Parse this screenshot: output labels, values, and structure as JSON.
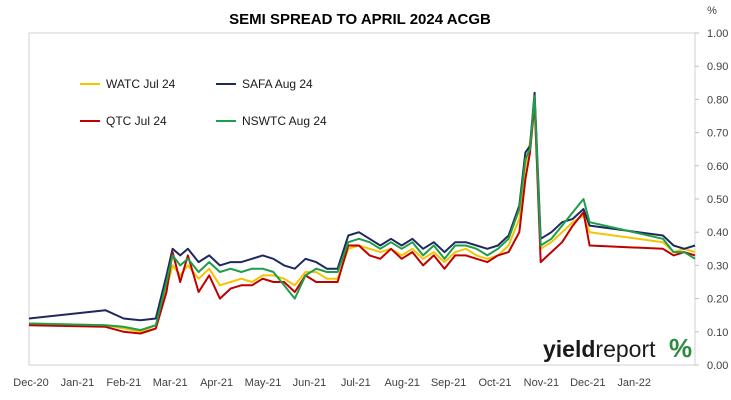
{
  "chart_data": {
    "type": "line",
    "title": "SEMI SPREAD TO APRIL 2024 ACGB",
    "y_unit": "%",
    "xlabel": "",
    "ylabel": "",
    "ylim": [
      0.0,
      1.0
    ],
    "ytick_step": 0.1,
    "y_ticks": [
      "0.00",
      "0.10",
      "0.20",
      "0.30",
      "0.40",
      "0.50",
      "0.60",
      "0.70",
      "0.80",
      "0.90",
      "1.00"
    ],
    "x_tick_labels": [
      "Dec-20",
      "Jan-21",
      "Feb-21",
      "Mar-21",
      "Apr-21",
      "May-21",
      "Jun-21",
      "Jul-21",
      "Aug-21",
      "Sep-21",
      "Oct-21",
      "Nov-21",
      "Dec-21",
      "Jan-22"
    ],
    "x_range": [
      "2020-12-01",
      "2022-02-10"
    ],
    "grid": false,
    "legend": "top-left",
    "series": [
      {
        "name": "WATC Jul 24",
        "color": "#f5c400",
        "points": [
          [
            "2020-12-01",
            0.125
          ],
          [
            "2021-01-20",
            0.12
          ],
          [
            "2021-02-01",
            0.11
          ],
          [
            "2021-02-12",
            0.1
          ],
          [
            "2021-02-22",
            0.12
          ],
          [
            "2021-03-01",
            0.23
          ],
          [
            "2021-03-05",
            0.3
          ],
          [
            "2021-03-10",
            0.27
          ],
          [
            "2021-03-15",
            0.3
          ],
          [
            "2021-03-22",
            0.26
          ],
          [
            "2021-03-29",
            0.29
          ],
          [
            "2021-04-05",
            0.24
          ],
          [
            "2021-04-12",
            0.25
          ],
          [
            "2021-04-19",
            0.26
          ],
          [
            "2021-04-26",
            0.25
          ],
          [
            "2021-05-03",
            0.27
          ],
          [
            "2021-05-10",
            0.27
          ],
          [
            "2021-05-17",
            0.26
          ],
          [
            "2021-05-24",
            0.24
          ],
          [
            "2021-05-31",
            0.28
          ],
          [
            "2021-06-07",
            0.28
          ],
          [
            "2021-06-14",
            0.26
          ],
          [
            "2021-06-21",
            0.26
          ],
          [
            "2021-06-28",
            0.35
          ],
          [
            "2021-07-05",
            0.36
          ],
          [
            "2021-07-12",
            0.35
          ],
          [
            "2021-07-19",
            0.34
          ],
          [
            "2021-07-26",
            0.35
          ],
          [
            "2021-08-02",
            0.33
          ],
          [
            "2021-08-09",
            0.35
          ],
          [
            "2021-08-16",
            0.32
          ],
          [
            "2021-08-23",
            0.34
          ],
          [
            "2021-08-30",
            0.31
          ],
          [
            "2021-09-06",
            0.34
          ],
          [
            "2021-09-13",
            0.35
          ],
          [
            "2021-09-20",
            0.33
          ],
          [
            "2021-09-27",
            0.32
          ],
          [
            "2021-10-04",
            0.33
          ],
          [
            "2021-10-11",
            0.36
          ],
          [
            "2021-10-18",
            0.44
          ],
          [
            "2021-10-22",
            0.6
          ],
          [
            "2021-10-25",
            0.67
          ],
          [
            "2021-10-28",
            0.78
          ],
          [
            "2021-11-01",
            0.35
          ],
          [
            "2021-11-08",
            0.37
          ],
          [
            "2021-11-15",
            0.4
          ],
          [
            "2021-11-22",
            0.43
          ],
          [
            "2021-11-29",
            0.45
          ],
          [
            "2021-12-03",
            0.4
          ],
          [
            "2022-01-20",
            0.37
          ],
          [
            "2022-01-27",
            0.34
          ],
          [
            "2022-02-03",
            0.35
          ],
          [
            "2022-02-10",
            0.34
          ]
        ]
      },
      {
        "name": "SAFA Aug 24",
        "color": "#1f2a5c",
        "points": [
          [
            "2020-12-01",
            0.14
          ],
          [
            "2021-01-20",
            0.165
          ],
          [
            "2021-02-01",
            0.14
          ],
          [
            "2021-02-12",
            0.135
          ],
          [
            "2021-02-22",
            0.14
          ],
          [
            "2021-03-01",
            0.27
          ],
          [
            "2021-03-05",
            0.35
          ],
          [
            "2021-03-10",
            0.33
          ],
          [
            "2021-03-15",
            0.35
          ],
          [
            "2021-03-22",
            0.31
          ],
          [
            "2021-03-29",
            0.33
          ],
          [
            "2021-04-05",
            0.3
          ],
          [
            "2021-04-12",
            0.31
          ],
          [
            "2021-04-19",
            0.31
          ],
          [
            "2021-04-26",
            0.32
          ],
          [
            "2021-05-03",
            0.33
          ],
          [
            "2021-05-10",
            0.32
          ],
          [
            "2021-05-17",
            0.3
          ],
          [
            "2021-05-24",
            0.29
          ],
          [
            "2021-05-31",
            0.32
          ],
          [
            "2021-06-07",
            0.31
          ],
          [
            "2021-06-14",
            0.29
          ],
          [
            "2021-06-21",
            0.29
          ],
          [
            "2021-06-28",
            0.39
          ],
          [
            "2021-07-05",
            0.4
          ],
          [
            "2021-07-12",
            0.38
          ],
          [
            "2021-07-19",
            0.36
          ],
          [
            "2021-07-26",
            0.38
          ],
          [
            "2021-08-02",
            0.36
          ],
          [
            "2021-08-09",
            0.38
          ],
          [
            "2021-08-16",
            0.35
          ],
          [
            "2021-08-23",
            0.37
          ],
          [
            "2021-08-30",
            0.34
          ],
          [
            "2021-09-06",
            0.37
          ],
          [
            "2021-09-13",
            0.37
          ],
          [
            "2021-09-20",
            0.36
          ],
          [
            "2021-09-27",
            0.35
          ],
          [
            "2021-10-04",
            0.36
          ],
          [
            "2021-10-11",
            0.39
          ],
          [
            "2021-10-18",
            0.48
          ],
          [
            "2021-10-22",
            0.64
          ],
          [
            "2021-10-25",
            0.66
          ],
          [
            "2021-10-28",
            0.82
          ],
          [
            "2021-11-01",
            0.38
          ],
          [
            "2021-11-08",
            0.4
          ],
          [
            "2021-11-15",
            0.43
          ],
          [
            "2021-11-22",
            0.44
          ],
          [
            "2021-11-29",
            0.47
          ],
          [
            "2021-12-03",
            0.42
          ],
          [
            "2022-01-20",
            0.39
          ],
          [
            "2022-01-27",
            0.36
          ],
          [
            "2022-02-03",
            0.35
          ],
          [
            "2022-02-10",
            0.36
          ]
        ]
      },
      {
        "name": "QTC Jul 24",
        "color": "#c00000",
        "points": [
          [
            "2020-12-01",
            0.12
          ],
          [
            "2021-01-20",
            0.115
          ],
          [
            "2021-02-01",
            0.1
          ],
          [
            "2021-02-12",
            0.095
          ],
          [
            "2021-02-22",
            0.11
          ],
          [
            "2021-03-01",
            0.22
          ],
          [
            "2021-03-05",
            0.34
          ],
          [
            "2021-03-10",
            0.25
          ],
          [
            "2021-03-15",
            0.33
          ],
          [
            "2021-03-22",
            0.22
          ],
          [
            "2021-03-29",
            0.27
          ],
          [
            "2021-04-05",
            0.2
          ],
          [
            "2021-04-12",
            0.23
          ],
          [
            "2021-04-19",
            0.24
          ],
          [
            "2021-04-26",
            0.24
          ],
          [
            "2021-05-03",
            0.26
          ],
          [
            "2021-05-10",
            0.25
          ],
          [
            "2021-05-17",
            0.25
          ],
          [
            "2021-05-24",
            0.22
          ],
          [
            "2021-05-31",
            0.27
          ],
          [
            "2021-06-07",
            0.25
          ],
          [
            "2021-06-14",
            0.25
          ],
          [
            "2021-06-21",
            0.25
          ],
          [
            "2021-06-28",
            0.36
          ],
          [
            "2021-07-05",
            0.36
          ],
          [
            "2021-07-12",
            0.33
          ],
          [
            "2021-07-19",
            0.32
          ],
          [
            "2021-07-26",
            0.35
          ],
          [
            "2021-08-02",
            0.32
          ],
          [
            "2021-08-09",
            0.34
          ],
          [
            "2021-08-16",
            0.3
          ],
          [
            "2021-08-23",
            0.33
          ],
          [
            "2021-08-30",
            0.29
          ],
          [
            "2021-09-06",
            0.33
          ],
          [
            "2021-09-13",
            0.33
          ],
          [
            "2021-09-20",
            0.32
          ],
          [
            "2021-09-27",
            0.31
          ],
          [
            "2021-10-04",
            0.33
          ],
          [
            "2021-10-11",
            0.34
          ],
          [
            "2021-10-18",
            0.4
          ],
          [
            "2021-10-22",
            0.56
          ],
          [
            "2021-10-25",
            0.64
          ],
          [
            "2021-10-28",
            0.79
          ],
          [
            "2021-11-01",
            0.31
          ],
          [
            "2021-11-08",
            0.34
          ],
          [
            "2021-11-15",
            0.37
          ],
          [
            "2021-11-22",
            0.42
          ],
          [
            "2021-11-29",
            0.46
          ],
          [
            "2021-12-03",
            0.36
          ],
          [
            "2022-01-20",
            0.35
          ],
          [
            "2022-01-27",
            0.33
          ],
          [
            "2022-02-03",
            0.34
          ],
          [
            "2022-02-10",
            0.33
          ]
        ]
      },
      {
        "name": "NSWTC Aug 24",
        "color": "#1e9e4a",
        "points": [
          [
            "2020-12-01",
            0.125
          ],
          [
            "2021-01-20",
            0.12
          ],
          [
            "2021-02-01",
            0.115
          ],
          [
            "2021-02-12",
            0.105
          ],
          [
            "2021-02-22",
            0.12
          ],
          [
            "2021-03-01",
            0.25
          ],
          [
            "2021-03-05",
            0.33
          ],
          [
            "2021-03-10",
            0.3
          ],
          [
            "2021-03-15",
            0.32
          ],
          [
            "2021-03-22",
            0.28
          ],
          [
            "2021-03-29",
            0.31
          ],
          [
            "2021-04-05",
            0.28
          ],
          [
            "2021-04-12",
            0.29
          ],
          [
            "2021-04-19",
            0.28
          ],
          [
            "2021-04-26",
            0.29
          ],
          [
            "2021-05-03",
            0.29
          ],
          [
            "2021-05-10",
            0.28
          ],
          [
            "2021-05-17",
            0.24
          ],
          [
            "2021-05-24",
            0.2
          ],
          [
            "2021-05-31",
            0.27
          ],
          [
            "2021-06-07",
            0.29
          ],
          [
            "2021-06-14",
            0.28
          ],
          [
            "2021-06-21",
            0.28
          ],
          [
            "2021-06-28",
            0.37
          ],
          [
            "2021-07-05",
            0.38
          ],
          [
            "2021-07-12",
            0.37
          ],
          [
            "2021-07-19",
            0.35
          ],
          [
            "2021-07-26",
            0.37
          ],
          [
            "2021-08-02",
            0.35
          ],
          [
            "2021-08-09",
            0.37
          ],
          [
            "2021-08-16",
            0.33
          ],
          [
            "2021-08-23",
            0.36
          ],
          [
            "2021-08-30",
            0.32
          ],
          [
            "2021-09-06",
            0.36
          ],
          [
            "2021-09-13",
            0.36
          ],
          [
            "2021-09-20",
            0.35
          ],
          [
            "2021-09-27",
            0.33
          ],
          [
            "2021-10-04",
            0.35
          ],
          [
            "2021-10-11",
            0.38
          ],
          [
            "2021-10-18",
            0.47
          ],
          [
            "2021-10-22",
            0.62
          ],
          [
            "2021-10-25",
            0.65
          ],
          [
            "2021-10-28",
            0.81
          ],
          [
            "2021-11-01",
            0.36
          ],
          [
            "2021-11-08",
            0.38
          ],
          [
            "2021-11-15",
            0.42
          ],
          [
            "2021-11-22",
            0.46
          ],
          [
            "2021-11-29",
            0.5
          ],
          [
            "2021-12-03",
            0.43
          ],
          [
            "2022-01-20",
            0.38
          ],
          [
            "2022-01-27",
            0.34
          ],
          [
            "2022-02-03",
            0.34
          ],
          [
            "2022-02-10",
            0.32
          ]
        ]
      }
    ]
  },
  "branding": {
    "text_main": "yield",
    "text_accent": "report",
    "symbol": "%",
    "symbol_color": "#2e8b3d",
    "symbol_accent_color": "#c00000"
  }
}
